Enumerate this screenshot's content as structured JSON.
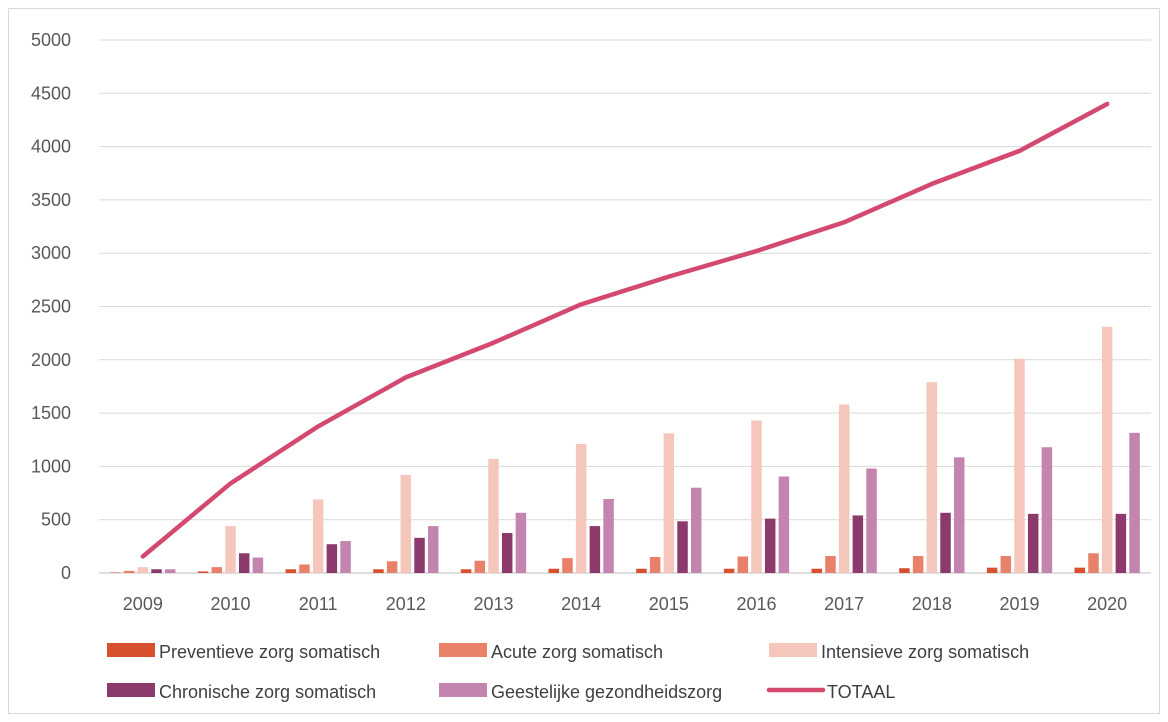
{
  "chart_data": {
    "type": "bar",
    "categories": [
      "2009",
      "2010",
      "2011",
      "2012",
      "2013",
      "2014",
      "2015",
      "2016",
      "2017",
      "2018",
      "2019",
      "2020"
    ],
    "ylim": [
      0,
      5000
    ],
    "yticks": [
      "0",
      "500",
      "1000",
      "1500",
      "2000",
      "2500",
      "3000",
      "3500",
      "4000",
      "4500",
      "5000"
    ],
    "grid": true,
    "legend_position": "bottom",
    "series": [
      {
        "name": "Preventieve zorg somatisch",
        "type": "bar",
        "color": "#d9502f",
        "values": [
          5,
          15,
          35,
          35,
          35,
          40,
          40,
          40,
          40,
          45,
          50,
          50
        ]
      },
      {
        "name": "Acute zorg somatisch",
        "type": "bar",
        "color": "#e8806a",
        "values": [
          20,
          55,
          80,
          110,
          115,
          140,
          150,
          155,
          160,
          160,
          160,
          185
        ]
      },
      {
        "name": "Intensieve zorg somatisch",
        "type": "bar",
        "color": "#f5c6bc",
        "values": [
          55,
          440,
          690,
          920,
          1070,
          1210,
          1310,
          1430,
          1580,
          1790,
          2010,
          2310
        ]
      },
      {
        "name": "Chronische zorg somatisch",
        "type": "bar",
        "color": "#8c3a6b",
        "values": [
          35,
          185,
          270,
          330,
          375,
          440,
          485,
          510,
          540,
          565,
          555,
          555
        ]
      },
      {
        "name": "Geestelijke gezondheidszorg",
        "type": "bar",
        "color": "#c384b0",
        "values": [
          35,
          145,
          300,
          440,
          565,
          695,
          800,
          905,
          980,
          1085,
          1180,
          1315
        ]
      },
      {
        "name": "TOTAAL",
        "type": "line",
        "color": "#d4496f",
        "values": [
          155,
          840,
          1375,
          1835,
          2160,
          2520,
          2780,
          3020,
          3290,
          3650,
          3960,
          4400
        ]
      }
    ]
  }
}
